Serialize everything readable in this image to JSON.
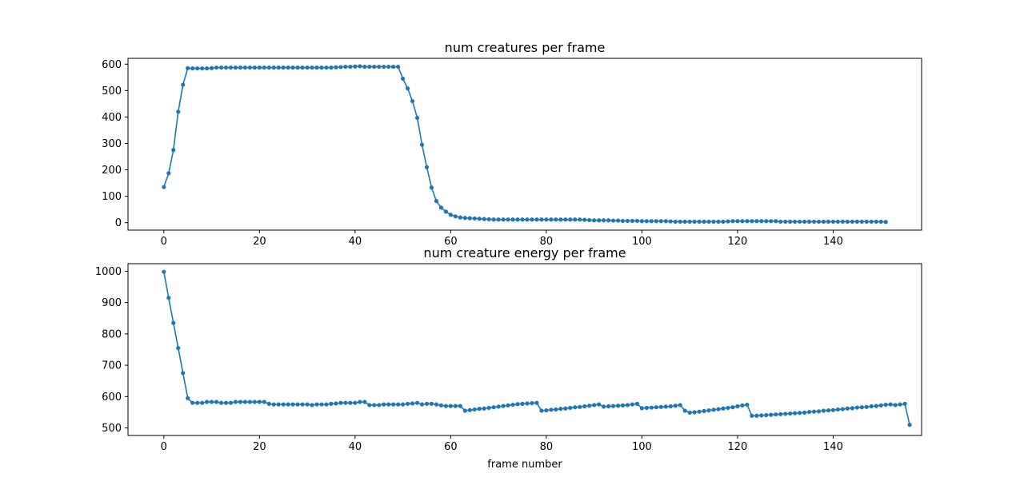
{
  "chart_data": [
    {
      "type": "line",
      "title": "num creatures per frame",
      "xlabel": "",
      "ylabel": "",
      "xlim": [
        -7.5,
        158.5
      ],
      "ylim": [
        -28,
        622
      ],
      "xticks": [
        0,
        20,
        40,
        60,
        80,
        100,
        120,
        140
      ],
      "yticks": [
        0,
        100,
        200,
        300,
        400,
        500,
        600
      ],
      "grid": false,
      "color": "#1f77b4",
      "x_start": 0,
      "values": [
        135,
        187,
        275,
        420,
        522,
        585,
        584,
        584,
        584,
        584,
        585,
        587,
        587,
        587,
        587,
        587,
        587,
        587,
        587,
        587,
        587,
        587,
        587,
        587,
        587,
        587,
        587,
        587,
        587,
        587,
        587,
        587,
        587,
        587,
        587,
        587,
        588,
        589,
        590,
        590,
        591,
        592,
        590,
        590,
        590,
        590,
        590,
        590,
        590,
        590,
        545,
        508,
        460,
        397,
        295,
        210,
        133,
        82,
        57,
        42,
        30,
        24,
        20,
        18,
        17,
        16,
        15,
        14,
        13,
        12,
        12,
        12,
        12,
        12,
        12,
        12,
        12,
        12,
        12,
        12,
        12,
        12,
        12,
        12,
        12,
        12,
        12,
        12,
        11,
        10,
        9,
        9,
        9,
        9,
        8,
        8,
        7,
        7,
        7,
        7,
        6,
        6,
        6,
        6,
        6,
        6,
        5,
        4,
        4,
        4,
        4,
        4,
        4,
        4,
        4,
        4,
        4,
        4,
        5,
        6,
        6,
        6,
        6,
        6,
        6,
        6,
        6,
        6,
        6,
        4,
        4,
        4,
        4,
        4,
        4,
        4,
        4,
        4,
        4,
        4,
        4,
        4,
        4,
        4,
        4,
        4,
        4,
        4,
        4,
        4,
        4,
        3
      ]
    },
    {
      "type": "line",
      "title": "num creature energy per frame",
      "xlabel": "frame number",
      "ylabel": "",
      "xlim": [
        -7.5,
        158.5
      ],
      "ylim": [
        476,
        1024
      ],
      "xticks": [
        0,
        20,
        40,
        60,
        80,
        100,
        120,
        140
      ],
      "yticks": [
        500,
        600,
        700,
        800,
        900,
        1000
      ],
      "grid": false,
      "color": "#1f77b4",
      "x_start": 0,
      "values": [
        998,
        915,
        835,
        755,
        675,
        595,
        580,
        580,
        580,
        583,
        583,
        583,
        580,
        580,
        580,
        583,
        583,
        583,
        583,
        583,
        583,
        583,
        577,
        575,
        575,
        575,
        575,
        575,
        575,
        575,
        575,
        573,
        575,
        575,
        575,
        577,
        578,
        580,
        580,
        580,
        580,
        583,
        583,
        573,
        573,
        573,
        575,
        575,
        575,
        575,
        575,
        577,
        578,
        580,
        575,
        577,
        577,
        575,
        572,
        570,
        570,
        570,
        570,
        555,
        557,
        559,
        561,
        562,
        564,
        566,
        568,
        570,
        572,
        574,
        576,
        577,
        578,
        579,
        580,
        555,
        556,
        558,
        559,
        561,
        562,
        564,
        566,
        567,
        569,
        571,
        573,
        575,
        568,
        569,
        570,
        571,
        572,
        573,
        575,
        577,
        563,
        564,
        565,
        566,
        567,
        568,
        569,
        571,
        573,
        555,
        549,
        550,
        552,
        554,
        556,
        558,
        560,
        562,
        564,
        566,
        569,
        572,
        574,
        539,
        539,
        540,
        541,
        542,
        543,
        544,
        545,
        546,
        547,
        548,
        549,
        551,
        552,
        553,
        555,
        556,
        557,
        559,
        560,
        562,
        563,
        565,
        566,
        567,
        569,
        570,
        572,
        574,
        575,
        573,
        575,
        577,
        510
      ]
    }
  ]
}
